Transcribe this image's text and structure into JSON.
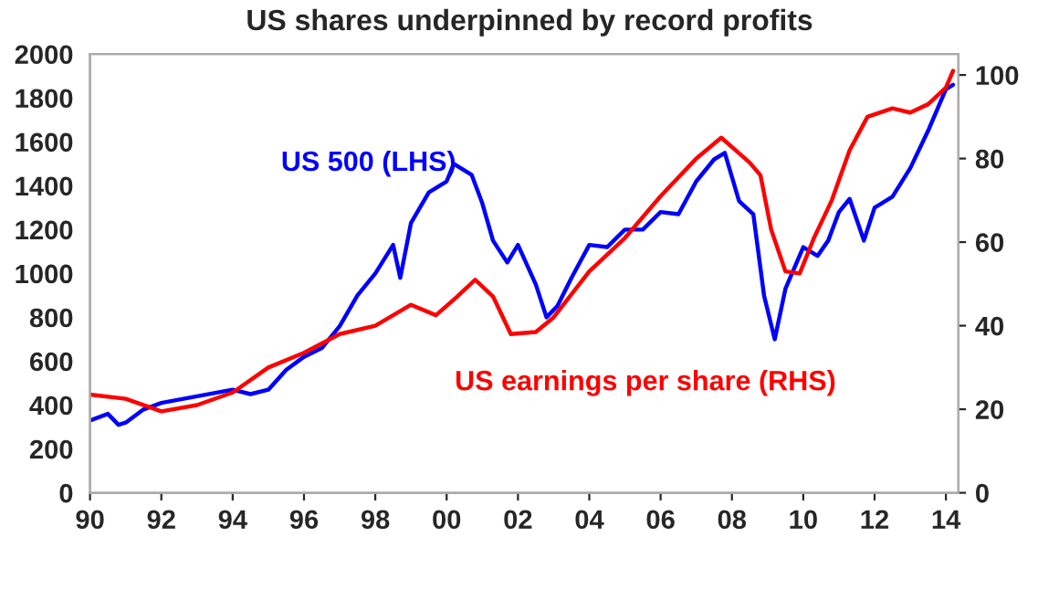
{
  "chart_data": {
    "type": "line",
    "title": "US shares underpinned by record profits",
    "xlim": [
      1990,
      2014.35
    ],
    "xticks": [
      {
        "value": 1990,
        "label": "90"
      },
      {
        "value": 1992,
        "label": "92"
      },
      {
        "value": 1994,
        "label": "94"
      },
      {
        "value": 1996,
        "label": "96"
      },
      {
        "value": 1998,
        "label": "98"
      },
      {
        "value": 2000,
        "label": "00"
      },
      {
        "value": 2002,
        "label": "02"
      },
      {
        "value": 2004,
        "label": "04"
      },
      {
        "value": 2006,
        "label": "06"
      },
      {
        "value": 2008,
        "label": "08"
      },
      {
        "value": 2010,
        "label": "10"
      },
      {
        "value": 2012,
        "label": "12"
      },
      {
        "value": 2014,
        "label": "14"
      }
    ],
    "ylim": [
      0,
      2000
    ],
    "yticks": [
      0,
      200,
      400,
      600,
      800,
      1000,
      1200,
      1400,
      1600,
      1800,
      2000
    ],
    "y2lim": [
      0,
      105
    ],
    "y2ticks": [
      0,
      20,
      40,
      60,
      80,
      100
    ],
    "grid": false,
    "legend": false,
    "series": [
      {
        "name": "US 500 (LHS)",
        "color": "#0000ff",
        "x": [
          1990,
          1990.5,
          1990.8,
          1991,
          1991.5,
          1992,
          1993,
          1994,
          1994.5,
          1995,
          1995.5,
          1996,
          1996.5,
          1997,
          1997.5,
          1998,
          1998.5,
          1998.7,
          1999,
          1999.5,
          2000,
          2000.2,
          2000.7,
          2001,
          2001.3,
          2001.7,
          2002,
          2002.5,
          2002.8,
          2003.1,
          2003.5,
          2004,
          2004.5,
          2005,
          2005.5,
          2006,
          2006.5,
          2007,
          2007.5,
          2007.8,
          2008.2,
          2008.6,
          2008.9,
          2009.2,
          2009.5,
          2010,
          2010.4,
          2010.7,
          2011,
          2011.3,
          2011.7,
          2012,
          2012.5,
          2013,
          2013.5,
          2014,
          2014.2
        ],
        "values": [
          330,
          360,
          310,
          320,
          380,
          410,
          440,
          470,
          450,
          470,
          560,
          620,
          660,
          760,
          900,
          1000,
          1130,
          980,
          1230,
          1370,
          1420,
          1500,
          1450,
          1320,
          1150,
          1050,
          1130,
          950,
          800,
          850,
          980,
          1130,
          1120,
          1200,
          1200,
          1280,
          1270,
          1420,
          1520,
          1550,
          1330,
          1270,
          900,
          700,
          930,
          1120,
          1080,
          1150,
          1280,
          1340,
          1150,
          1300,
          1350,
          1480,
          1650,
          1840,
          1860
        ]
      },
      {
        "name": "US earnings per share (RHS)",
        "color": "#ff0000",
        "axis": "y2",
        "x": [
          1990,
          1991,
          1992,
          1993,
          1994,
          1995,
          1996,
          1997,
          1998,
          1999,
          1999.7,
          2000.3,
          2000.8,
          2001.3,
          2001.8,
          2002.5,
          2003,
          2004,
          2005,
          2006,
          2007,
          2007.7,
          2008.1,
          2008.5,
          2008.8,
          2009.1,
          2009.5,
          2009.9,
          2010.3,
          2010.8,
          2011.3,
          2011.8,
          2012.5,
          2013,
          2013.5,
          2014,
          2014.2
        ],
        "values": [
          23.5,
          22.5,
          19.5,
          21,
          24,
          30,
          33.5,
          38,
          40,
          45,
          42.5,
          47,
          51,
          47,
          38,
          38.5,
          42,
          53,
          61,
          71,
          80,
          85,
          82,
          79,
          76,
          63,
          53,
          52.5,
          61,
          70,
          82,
          90,
          92,
          91,
          93,
          97,
          101
        ]
      }
    ]
  }
}
